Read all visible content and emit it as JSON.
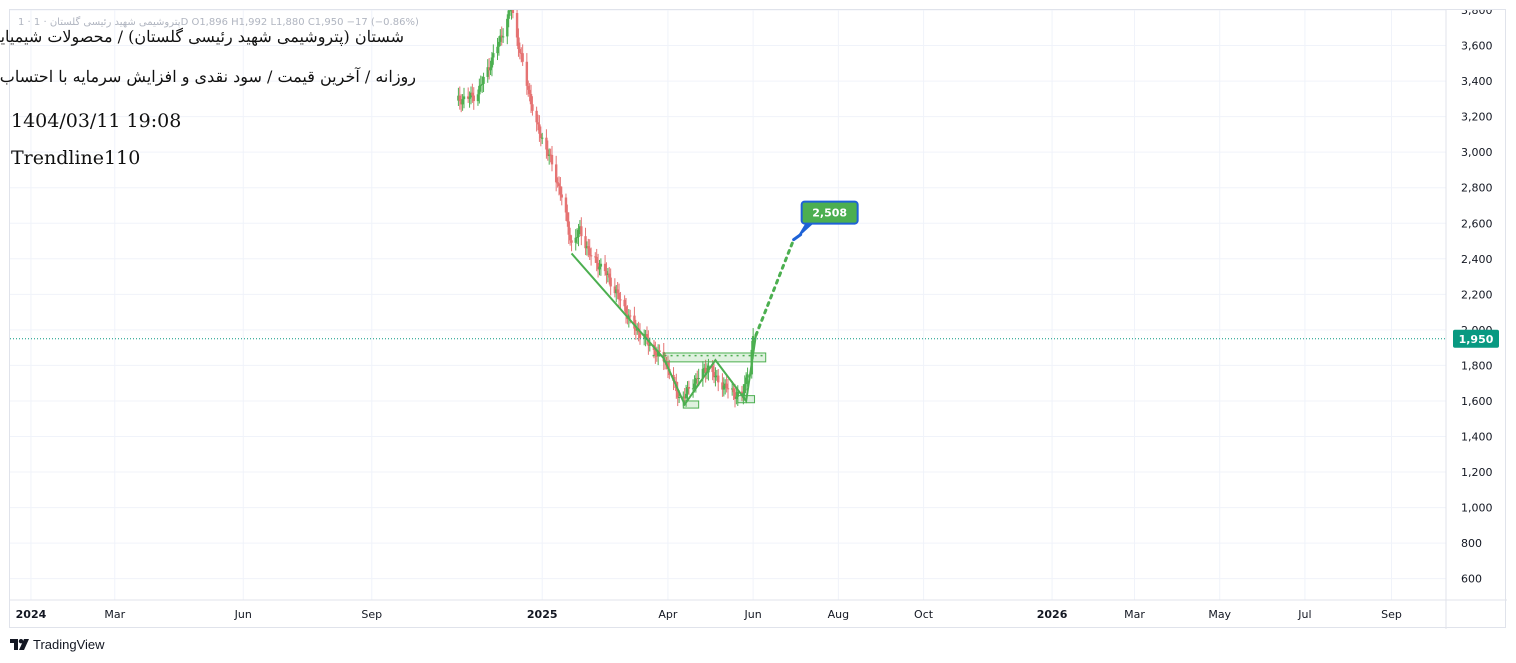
{
  "header": {
    "ohlc_line": "1 · پتروشیمی شهید رئیسی گلستان · 1D  O1,896  H1,992  L1,880  C1,950  −17 (−0.86%)",
    "title": "شستان (پتروشیمی شهید رئیسی گلستان) / محصولات شیمیایی",
    "subtitle": "روزانه / آخرین قیمت / سود نقدی و افزایش سرمایه با احتساب آورده",
    "datetime": "1404/03/11 19:08",
    "author": "Trendline110"
  },
  "brand": {
    "name": "TradingView",
    "icon": "tradingview-logo-icon"
  },
  "colors": {
    "up": "#4caf50",
    "down": "#e57373",
    "drawing": "#4caf50",
    "price_tag": "#089981",
    "target_border": "#1e62d6",
    "grid": "#f0f3fa"
  },
  "chart_data": {
    "type": "candlestick",
    "timeframe": "1D",
    "x_tick_labels": [
      "2024",
      "Mar",
      "Jun",
      "Sep",
      "2025",
      "Apr",
      "Jun",
      "Aug",
      "Oct",
      "2026",
      "Mar",
      "May",
      "Jul",
      "Sep"
    ],
    "x_tick_dates": [
      "2024-01-01",
      "2024-03-01",
      "2024-06-01",
      "2024-09-01",
      "2025-01-01",
      "2025-04-01",
      "2025-06-01",
      "2025-08-01",
      "2025-10-01",
      "2026-01-01",
      "2026-03-01",
      "2026-05-01",
      "2026-07-01",
      "2026-09-01"
    ],
    "y_tick_labels": [
      "600",
      "800",
      "1,000",
      "1,200",
      "1,400",
      "1,600",
      "1,800",
      "2,000",
      "2,200",
      "2,400",
      "2,600",
      "2,800",
      "3,000",
      "3,200",
      "3,400",
      "3,600",
      "3,800"
    ],
    "y_ticks": [
      600,
      800,
      1000,
      1200,
      1400,
      1600,
      1800,
      2000,
      2200,
      2400,
      2600,
      2800,
      3000,
      3200,
      3400,
      3600,
      3800
    ],
    "ylim": [
      480,
      3800
    ],
    "xlim": [
      "2023-12-17",
      "2026-10-10"
    ],
    "grid": true,
    "last_price": 1950,
    "last_price_label": "1,950",
    "target_label": "2,508",
    "target": 2508,
    "last_bar": {
      "open": 1896,
      "high": 1992,
      "low": 1880,
      "close": 1950
    },
    "price_path": [
      [
        "2024-11-01",
        3290
      ],
      [
        "2024-11-15",
        3320
      ],
      [
        "2024-11-25",
        3500
      ],
      [
        "2024-12-05",
        3700
      ],
      [
        "2024-12-10",
        3820
      ],
      [
        "2024-12-13",
        3680
      ],
      [
        "2024-12-20",
        3420
      ],
      [
        "2024-12-28",
        3150
      ],
      [
        "2025-01-06",
        2980
      ],
      [
        "2025-01-15",
        2750
      ],
      [
        "2025-01-22",
        2480
      ],
      [
        "2025-01-28",
        2560
      ],
      [
        "2025-02-05",
        2410
      ],
      [
        "2025-02-15",
        2330
      ],
      [
        "2025-02-25",
        2180
      ],
      [
        "2025-03-08",
        2010
      ],
      [
        "2025-03-15",
        1960
      ],
      [
        "2025-03-22",
        1880
      ],
      [
        "2025-03-30",
        1830
      ],
      [
        "2025-04-05",
        1700
      ],
      [
        "2025-04-10",
        1600
      ],
      [
        "2025-04-15",
        1650
      ],
      [
        "2025-04-22",
        1730
      ],
      [
        "2025-04-30",
        1790
      ],
      [
        "2025-05-06",
        1720
      ],
      [
        "2025-05-12",
        1680
      ],
      [
        "2025-05-19",
        1640
      ],
      [
        "2025-05-24",
        1620
      ],
      [
        "2025-05-27",
        1720
      ],
      [
        "2025-05-30",
        1870
      ],
      [
        "2025-06-01",
        1950
      ]
    ],
    "drawings": {
      "trend_lines": [
        [
          [
            "2025-01-22",
            2430
          ],
          [
            "2025-03-29",
            1840
          ],
          [
            "2025-04-13",
            1580
          ],
          [
            "2025-05-05",
            1830
          ],
          [
            "2025-05-27",
            1600
          ],
          [
            "2025-06-03",
            1970
          ]
        ]
      ],
      "neckline": [
        [
          "2025-03-21",
          1855
        ],
        [
          "2025-06-10",
          1855
        ]
      ],
      "projection": [
        [
          "2025-06-03",
          1970
        ],
        [
          "2025-06-30",
          2508
        ]
      ],
      "zones": [
        {
          "x0": "2025-03-29",
          "x1": "2025-06-10",
          "y0": 1820,
          "y1": 1870
        },
        {
          "x0": "2025-04-12",
          "x1": "2025-04-23",
          "y0": 1560,
          "y1": 1600
        },
        {
          "x0": "2025-05-21",
          "x1": "2025-06-02",
          "y0": 1590,
          "y1": 1630
        }
      ]
    }
  }
}
